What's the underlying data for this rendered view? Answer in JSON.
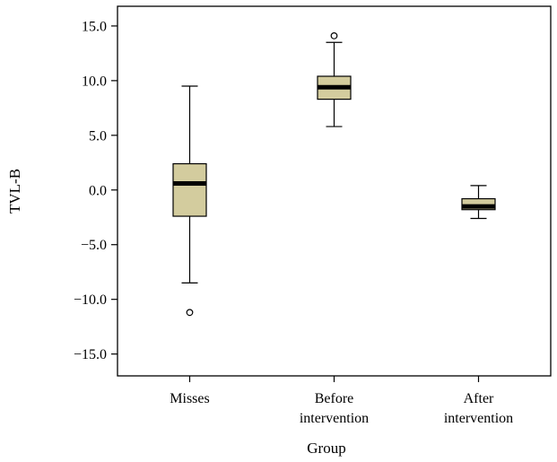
{
  "chart_data": {
    "type": "boxplot",
    "xlabel": "Group",
    "ylabel": "TVL-B",
    "ylim": [
      -17.0,
      16.8
    ],
    "yticks": [
      15.0,
      10.0,
      5.0,
      0.0,
      -5.0,
      -10.0,
      -15.0
    ],
    "ytick_labels": [
      "15.0",
      "10.0",
      "5.0",
      "0.0",
      "−5.0",
      "−10.0",
      "−15.0"
    ],
    "grid": false,
    "box_color": "#d3cc9e",
    "categories": [
      {
        "label_lines": [
          "Misses"
        ],
        "whisker_low": -8.5,
        "q1": -2.4,
        "median": 0.6,
        "q3": 2.4,
        "whisker_high": 9.5,
        "outliers": [
          -11.2
        ]
      },
      {
        "label_lines": [
          "Before",
          "intervention"
        ],
        "whisker_low": 5.8,
        "q1": 8.3,
        "median": 9.4,
        "q3": 10.4,
        "whisker_high": 13.5,
        "outliers": [
          14.1
        ]
      },
      {
        "label_lines": [
          "After",
          "intervention"
        ],
        "whisker_low": -2.6,
        "q1": -1.8,
        "median": -1.5,
        "q3": -0.8,
        "whisker_high": 0.4,
        "outliers": []
      }
    ]
  }
}
